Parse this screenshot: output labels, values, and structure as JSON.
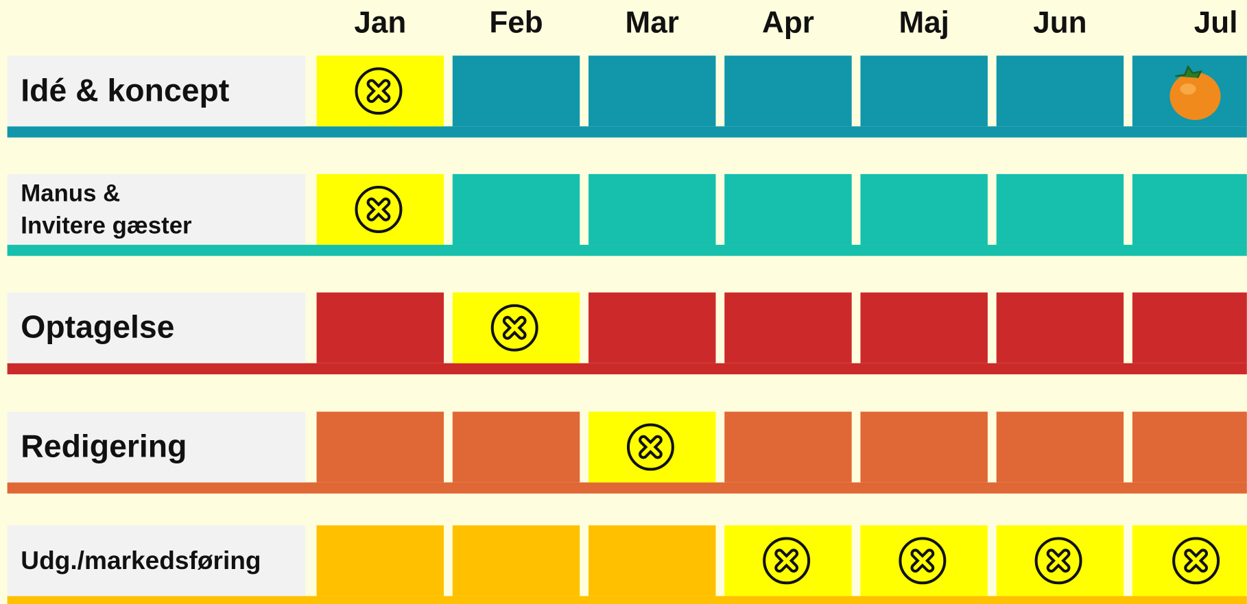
{
  "months": [
    "Jan",
    "Feb",
    "Mar",
    "Apr",
    "Maj",
    "Jun",
    "Jul"
  ],
  "rows": [
    {
      "label": [
        "Idé & koncept"
      ],
      "color": "#1196aa",
      "marked": [
        true,
        false,
        false,
        false,
        false,
        false,
        false
      ]
    },
    {
      "label": [
        "Manus &",
        "Invitere gæster"
      ],
      "color": "#17c0ad",
      "marked": [
        true,
        false,
        false,
        false,
        false,
        false,
        false
      ]
    },
    {
      "label": [
        "Optagelse"
      ],
      "color": "#cc2a2a",
      "marked": [
        false,
        true,
        false,
        false,
        false,
        false,
        false
      ]
    },
    {
      "label": [
        "Redigering"
      ],
      "color": "#e06836",
      "marked": [
        false,
        false,
        true,
        false,
        false,
        false,
        false
      ]
    },
    {
      "label": [
        "Udg./markedsføring"
      ],
      "color": "#ffc000",
      "marked": [
        false,
        false,
        false,
        true,
        true,
        true,
        true
      ]
    }
  ],
  "highlight_color": "#ffff00"
}
